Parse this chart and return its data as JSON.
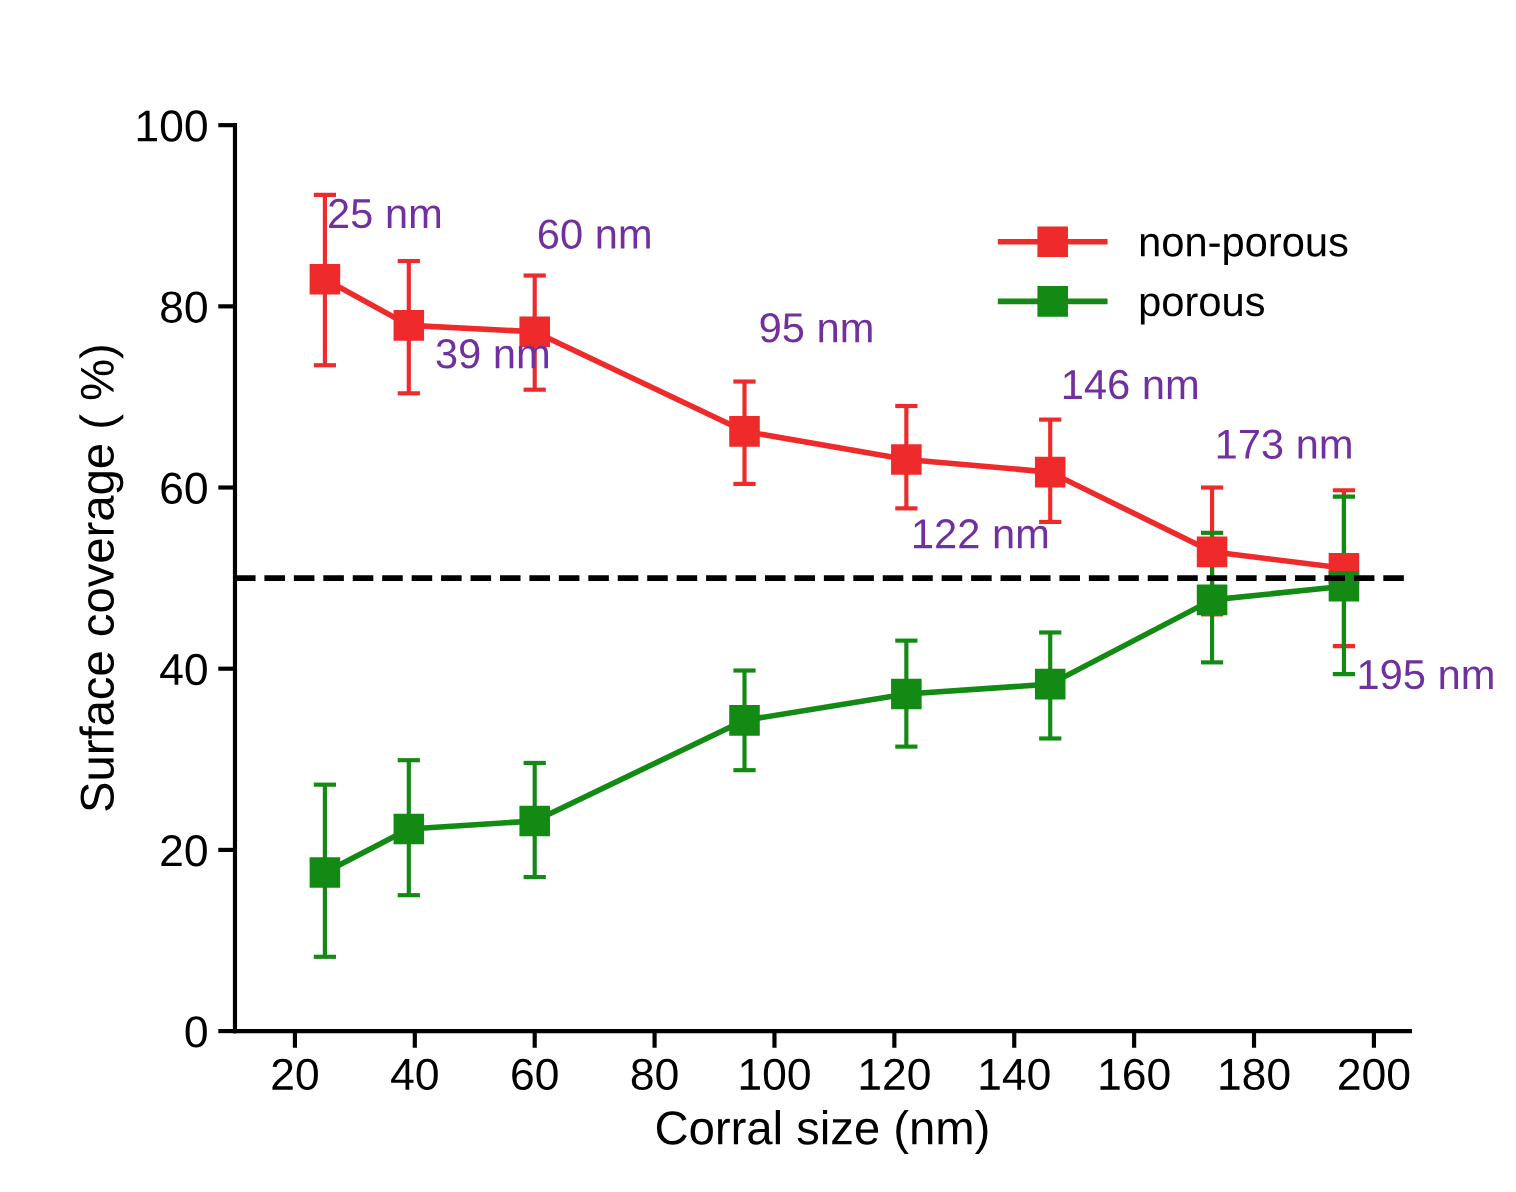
{
  "chart_data": {
    "type": "line",
    "xlabel": "Corral size (nm)",
    "ylabel": "Surface coverage ( %)",
    "x": [
      25,
      39,
      60,
      95,
      122,
      146,
      173,
      195
    ],
    "series": [
      {
        "name": "non-porous",
        "color": "#ee2a2a",
        "values": [
          83.0,
          77.9,
          77.2,
          66.2,
          63.1,
          61.7,
          52.9,
          51.1
        ],
        "errors": [
          [
            73.5,
            92.3
          ],
          [
            70.4,
            85
          ],
          [
            70.8,
            83.4
          ],
          [
            60.4,
            71.7
          ],
          [
            57.7,
            69
          ],
          [
            56.2,
            67.5
          ],
          [
            46,
            60
          ],
          [
            42.5,
            59.7
          ]
        ]
      },
      {
        "name": "porous",
        "color": "#138a13",
        "values": [
          17.5,
          22.3,
          23.2,
          34.3,
          37.2,
          38.3,
          47.6,
          49.1
        ],
        "errors": [
          [
            8.2,
            27.2
          ],
          [
            15,
            29.9
          ],
          [
            17,
            29.6
          ],
          [
            28.8,
            39.8
          ],
          [
            31.4,
            43.1
          ],
          [
            32.3,
            44
          ],
          [
            40.7,
            55
          ],
          [
            39.4,
            59
          ]
        ]
      }
    ],
    "xlim": [
      10,
      206
    ],
    "ylim": [
      0,
      100
    ],
    "xticks": [
      20,
      40,
      60,
      80,
      100,
      120,
      140,
      160,
      180,
      200
    ],
    "yticks": [
      0,
      20,
      40,
      60,
      80,
      100
    ],
    "ref_lines": [
      {
        "axis": "y",
        "value": 50,
        "label": null,
        "color": "#000000",
        "line_style": "dashed"
      }
    ],
    "annotations": [
      {
        "text": "25 nm",
        "x": 25,
        "y": 83.0
      },
      {
        "text": "39 nm",
        "x": 39,
        "y": 77.9
      },
      {
        "text": "60 nm",
        "x": 60,
        "y": 77.2
      },
      {
        "text": "95 nm",
        "x": 95,
        "y": 66.2
      },
      {
        "text": "122 nm",
        "x": 122,
        "y": 63.1
      },
      {
        "text": "146 nm",
        "x": 146,
        "y": 61.7
      },
      {
        "text": "173 nm",
        "x": 173,
        "y": 52.9
      },
      {
        "text": "195 nm",
        "x": 195,
        "y": 51.1
      }
    ],
    "marker": "square",
    "line_style": "solid",
    "grid": false,
    "legend": "top right"
  }
}
